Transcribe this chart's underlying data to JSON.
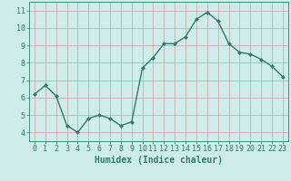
{
  "x": [
    0,
    1,
    2,
    3,
    4,
    5,
    6,
    7,
    8,
    9,
    10,
    11,
    12,
    13,
    14,
    15,
    16,
    17,
    18,
    19,
    20,
    21,
    22,
    23
  ],
  "y": [
    6.2,
    6.7,
    6.1,
    4.4,
    4.0,
    4.8,
    5.0,
    4.8,
    4.4,
    4.6,
    7.7,
    8.3,
    9.1,
    9.1,
    9.5,
    10.5,
    10.9,
    10.4,
    9.1,
    8.6,
    8.5,
    8.2,
    7.8,
    7.2
  ],
  "line_color": "#2e7d6e",
  "marker": "D",
  "marker_size": 2.0,
  "bg_color": "#ceecea",
  "grid_color": "#c8a0a0",
  "axis_color": "#2e7d6e",
  "xlabel": "Humidex (Indice chaleur)",
  "xlim": [
    -0.5,
    23.5
  ],
  "ylim": [
    3.5,
    11.5
  ],
  "yticks": [
    4,
    5,
    6,
    7,
    8,
    9,
    10,
    11
  ],
  "xticks": [
    0,
    1,
    2,
    3,
    4,
    5,
    6,
    7,
    8,
    9,
    10,
    11,
    12,
    13,
    14,
    15,
    16,
    17,
    18,
    19,
    20,
    21,
    22,
    23
  ],
  "xlabel_fontsize": 7,
  "tick_fontsize": 6,
  "line_width": 1.0
}
